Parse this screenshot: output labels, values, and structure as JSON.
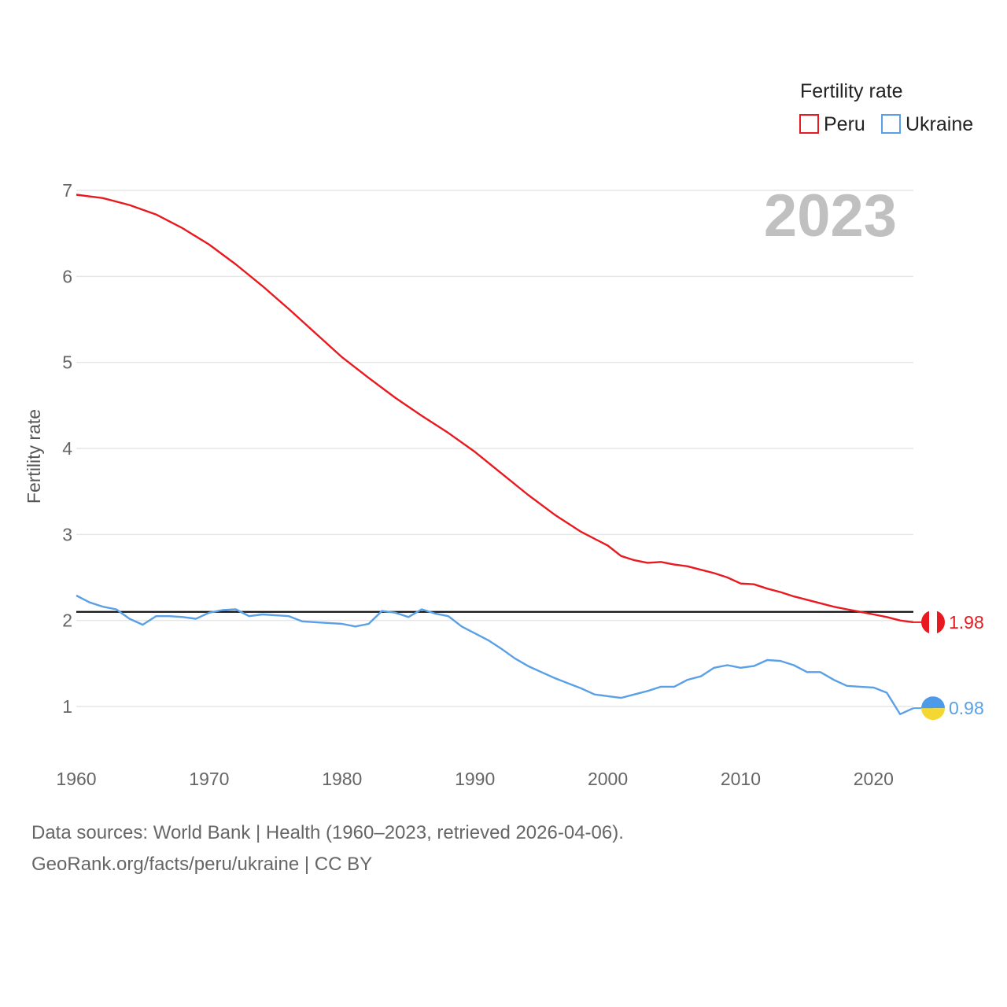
{
  "chart_data": {
    "type": "line",
    "title": "",
    "big_year_label": "2023",
    "ylabel": "Fertility rate",
    "xlabel": "",
    "ylim": [
      0.4,
      7
    ],
    "xlim": [
      1960,
      2023
    ],
    "yticks": [
      1,
      2,
      3,
      4,
      5,
      6,
      7
    ],
    "xticks": [
      1960,
      1970,
      1980,
      1990,
      2000,
      2010,
      2020
    ],
    "reference_line": 2.1,
    "legend": {
      "title": "Fertility rate",
      "position": "top-right"
    },
    "series": [
      {
        "name": "Peru",
        "color": "#e8191f",
        "end_label": "1.98",
        "flag_icon": "peru-flag-icon",
        "points": [
          [
            1960,
            6.95
          ],
          [
            1962,
            6.91
          ],
          [
            1964,
            6.83
          ],
          [
            1966,
            6.72
          ],
          [
            1968,
            6.56
          ],
          [
            1970,
            6.37
          ],
          [
            1972,
            6.14
          ],
          [
            1974,
            5.89
          ],
          [
            1976,
            5.62
          ],
          [
            1978,
            5.34
          ],
          [
            1980,
            5.06
          ],
          [
            1982,
            4.82
          ],
          [
            1984,
            4.59
          ],
          [
            1986,
            4.38
          ],
          [
            1988,
            4.18
          ],
          [
            1990,
            3.96
          ],
          [
            1992,
            3.71
          ],
          [
            1994,
            3.46
          ],
          [
            1996,
            3.23
          ],
          [
            1998,
            3.03
          ],
          [
            2000,
            2.87
          ],
          [
            2001,
            2.75
          ],
          [
            2002,
            2.7
          ],
          [
            2003,
            2.67
          ],
          [
            2004,
            2.68
          ],
          [
            2005,
            2.65
          ],
          [
            2006,
            2.63
          ],
          [
            2007,
            2.59
          ],
          [
            2008,
            2.55
          ],
          [
            2009,
            2.5
          ],
          [
            2010,
            2.43
          ],
          [
            2011,
            2.42
          ],
          [
            2012,
            2.37
          ],
          [
            2013,
            2.33
          ],
          [
            2014,
            2.28
          ],
          [
            2015,
            2.24
          ],
          [
            2016,
            2.2
          ],
          [
            2017,
            2.16
          ],
          [
            2018,
            2.13
          ],
          [
            2019,
            2.1
          ],
          [
            2020,
            2.07
          ],
          [
            2021,
            2.04
          ],
          [
            2022,
            2.0
          ],
          [
            2023,
            1.98
          ]
        ]
      },
      {
        "name": "Ukraine",
        "color": "#5aa0e6",
        "end_label": "0.98",
        "flag_icon": "ukraine-flag-icon",
        "points": [
          [
            1960,
            2.29
          ],
          [
            1961,
            2.21
          ],
          [
            1962,
            2.16
          ],
          [
            1963,
            2.13
          ],
          [
            1964,
            2.02
          ],
          [
            1965,
            1.95
          ],
          [
            1966,
            2.05
          ],
          [
            1967,
            2.05
          ],
          [
            1968,
            2.04
          ],
          [
            1969,
            2.02
          ],
          [
            1970,
            2.09
          ],
          [
            1971,
            2.12
          ],
          [
            1972,
            2.13
          ],
          [
            1973,
            2.05
          ],
          [
            1974,
            2.07
          ],
          [
            1975,
            2.06
          ],
          [
            1976,
            2.05
          ],
          [
            1977,
            1.99
          ],
          [
            1978,
            1.98
          ],
          [
            1979,
            1.97
          ],
          [
            1980,
            1.96
          ],
          [
            1981,
            1.93
          ],
          [
            1982,
            1.96
          ],
          [
            1983,
            2.11
          ],
          [
            1984,
            2.09
          ],
          [
            1985,
            2.04
          ],
          [
            1986,
            2.13
          ],
          [
            1987,
            2.08
          ],
          [
            1988,
            2.05
          ],
          [
            1989,
            1.93
          ],
          [
            1990,
            1.85
          ],
          [
            1991,
            1.77
          ],
          [
            1992,
            1.67
          ],
          [
            1993,
            1.56
          ],
          [
            1994,
            1.47
          ],
          [
            1995,
            1.4
          ],
          [
            1996,
            1.33
          ],
          [
            1997,
            1.27
          ],
          [
            1998,
            1.21
          ],
          [
            1999,
            1.14
          ],
          [
            2000,
            1.12
          ],
          [
            2001,
            1.1
          ],
          [
            2002,
            1.14
          ],
          [
            2003,
            1.18
          ],
          [
            2004,
            1.23
          ],
          [
            2005,
            1.23
          ],
          [
            2006,
            1.31
          ],
          [
            2007,
            1.35
          ],
          [
            2008,
            1.45
          ],
          [
            2009,
            1.48
          ],
          [
            2010,
            1.45
          ],
          [
            2011,
            1.47
          ],
          [
            2012,
            1.54
          ],
          [
            2013,
            1.53
          ],
          [
            2014,
            1.48
          ],
          [
            2015,
            1.4
          ],
          [
            2016,
            1.4
          ],
          [
            2017,
            1.31
          ],
          [
            2018,
            1.24
          ],
          [
            2019,
            1.23
          ],
          [
            2020,
            1.22
          ],
          [
            2021,
            1.16
          ],
          [
            2022,
            0.91
          ],
          [
            2023,
            0.98
          ]
        ]
      }
    ]
  },
  "footer": {
    "line1": "Data sources: World Bank | Health (1960–2023, retrieved 2026-04-06).",
    "line2": "GeoRank.org/facts/peru/ukraine | CC BY"
  }
}
